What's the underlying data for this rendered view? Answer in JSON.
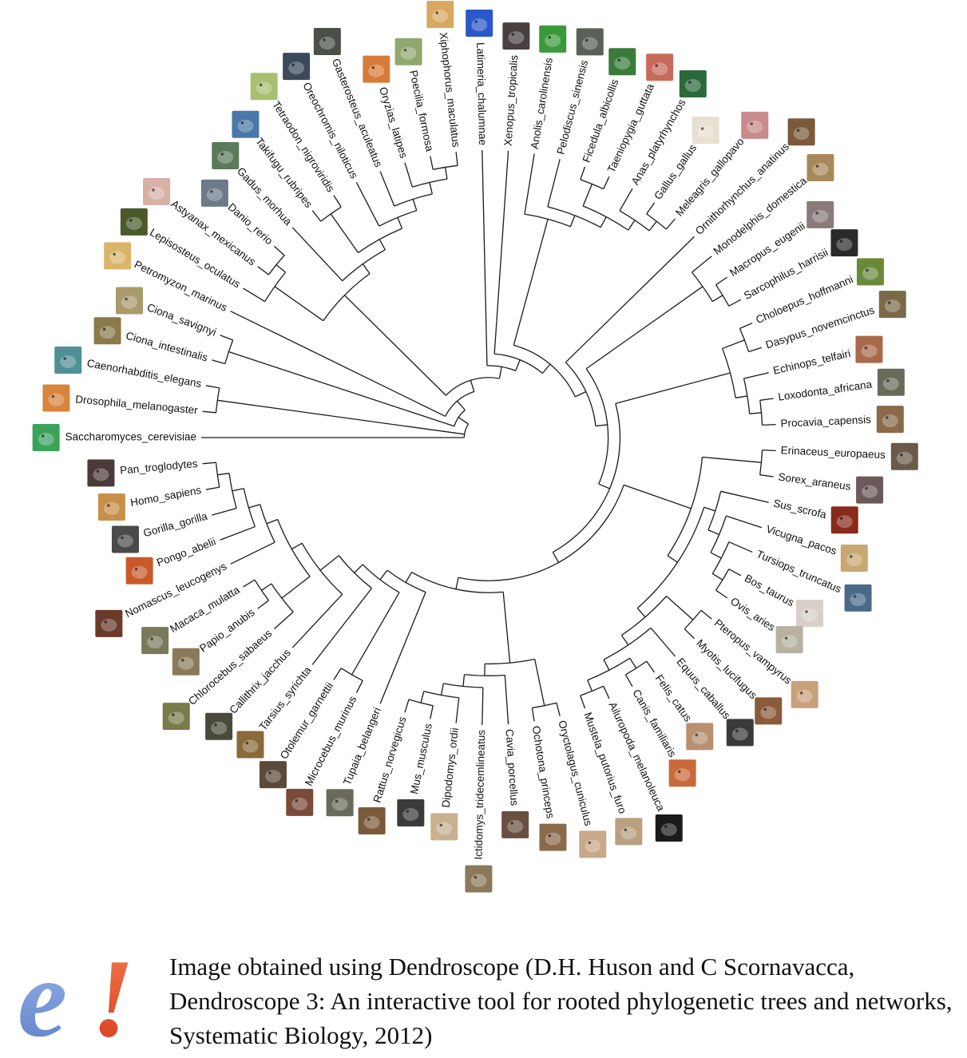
{
  "tree": {
    "taxa": [
      {
        "name": "Saccharomyces_cerevisiae",
        "icon": "yeast-cell-icon",
        "color": "#3aa35a"
      },
      {
        "name": "Drosophila_melanogaster",
        "icon": "fruit-fly-icon",
        "color": "#d8843c"
      },
      {
        "name": "Caenorhabditis_elegans",
        "icon": "roundworm-icon",
        "color": "#4f8f95"
      },
      {
        "name": "Ciona_intestinalis",
        "icon": "sea-squirt-icon",
        "color": "#8a7a4a"
      },
      {
        "name": "Ciona_savignyi",
        "icon": "sea-squirt-icon",
        "color": "#a89a6a"
      },
      {
        "name": "Petromyzon_marinus",
        "icon": "lamprey-icon",
        "color": "#d9b56a"
      },
      {
        "name": "Lepisosteus_oculatus",
        "icon": "gar-icon",
        "color": "#4a5a2a"
      },
      {
        "name": "Astyanax_mexicanus",
        "icon": "cavefish-icon",
        "color": "#d8b0a8"
      },
      {
        "name": "Danio_rerio",
        "icon": "zebrafish-icon",
        "color": "#6c7a8a"
      },
      {
        "name": "Gadus_morhua",
        "icon": "cod-icon",
        "color": "#5a7a5a"
      },
      {
        "name": "Takifugu_rubripes",
        "icon": "pufferfish-icon",
        "color": "#4a78a8"
      },
      {
        "name": "Tetraodon_nigroviridis",
        "icon": "pufferfish-icon",
        "color": "#a8c070"
      },
      {
        "name": "Oreochromis_niloticus",
        "icon": "tilapia-icon",
        "color": "#3a4a5a"
      },
      {
        "name": "Gasterosteus_aculeatus",
        "icon": "stickleback-icon",
        "color": "#4a5048"
      },
      {
        "name": "Oryzias_latipes",
        "icon": "medaka-icon",
        "color": "#d87a3a"
      },
      {
        "name": "Poecilia_formosa",
        "icon": "molly-icon",
        "color": "#90a870"
      },
      {
        "name": "Xiphophorus_maculatus",
        "icon": "platyfish-icon",
        "color": "#d8a860"
      },
      {
        "name": "Latimeria_chalumnae",
        "icon": "coelacanth-icon",
        "color": "#2a58c8"
      },
      {
        "name": "Xenopus_tropicalis",
        "icon": "frog-icon",
        "color": "#4a4040"
      },
      {
        "name": "Anolis_carolinensis",
        "icon": "anole-icon",
        "color": "#3a9a3a"
      },
      {
        "name": "Pelodiscus_sinensis",
        "icon": "turtle-icon",
        "color": "#5a6058"
      },
      {
        "name": "Ficedula_albicollis",
        "icon": "flycatcher-icon",
        "color": "#3a7a3a"
      },
      {
        "name": "Taeniopygia_guttata",
        "icon": "finch-icon",
        "color": "#c86a5a"
      },
      {
        "name": "Anas_platyrhynchos",
        "icon": "duck-icon",
        "color": "#2a6a3a"
      },
      {
        "name": "Gallus_gallus",
        "icon": "chicken-icon",
        "color": "#e8e0d0"
      },
      {
        "name": "Meleagris_gallopavo",
        "icon": "turkey-icon",
        "color": "#c88a8a"
      },
      {
        "name": "Ornithorhynchus_anatinus",
        "icon": "platypus-icon",
        "color": "#7a5a3a"
      },
      {
        "name": "Monodelphis_domestica",
        "icon": "opossum-icon",
        "color": "#a8885a"
      },
      {
        "name": "Macropus_eugenii",
        "icon": "wallaby-icon",
        "color": "#8a7a7a"
      },
      {
        "name": "Sarcophilus_harrisii",
        "icon": "tasmanian-devil-icon",
        "color": "#2a2a2a"
      },
      {
        "name": "Choloepus_hoffmanni",
        "icon": "sloth-icon",
        "color": "#6a8a3a"
      },
      {
        "name": "Dasypus_novemcinctus",
        "icon": "armadillo-icon",
        "color": "#7a6a4a"
      },
      {
        "name": "Echinops_telfairi",
        "icon": "tenrec-icon",
        "color": "#a86a4a"
      },
      {
        "name": "Loxodonta_africana",
        "icon": "elephant-icon",
        "color": "#6a6a5a"
      },
      {
        "name": "Procavia_capensis",
        "icon": "hyrax-icon",
        "color": "#8a6a4a"
      },
      {
        "name": "Erinaceus_europaeus",
        "icon": "hedgehog-icon",
        "color": "#6a5a4a"
      },
      {
        "name": "Sorex_araneus",
        "icon": "shrew-icon",
        "color": "#6a5a5a"
      },
      {
        "name": "Sus_scrofa",
        "icon": "pig-icon",
        "color": "#8a2a1a"
      },
      {
        "name": "Vicugna_pacos",
        "icon": "alpaca-icon",
        "color": "#c8a870"
      },
      {
        "name": "Tursiops_truncatus",
        "icon": "dolphin-icon",
        "color": "#4a6a8a"
      },
      {
        "name": "Bos_taurus",
        "icon": "cow-icon",
        "color": "#d8d0c8"
      },
      {
        "name": "Ovis_aries",
        "icon": "sheep-icon",
        "color": "#b8b0a0"
      },
      {
        "name": "Pteropus_vampyrus",
        "icon": "fruit-bat-icon",
        "color": "#c8a07a"
      },
      {
        "name": "Myotis_lucifugus",
        "icon": "bat-icon",
        "color": "#8a5a3a"
      },
      {
        "name": "Equus_caballus",
        "icon": "horse-icon",
        "color": "#3a3a3a"
      },
      {
        "name": "Felis_catus",
        "icon": "cat-icon",
        "color": "#b89070"
      },
      {
        "name": "Canis_familiaris",
        "icon": "dog-icon",
        "color": "#c86a3a"
      },
      {
        "name": "Ailuropoda_melanoleuca",
        "icon": "panda-icon",
        "color": "#1a1a1a"
      },
      {
        "name": "Mustela_putorius_furo",
        "icon": "ferret-icon",
        "color": "#b8a080"
      },
      {
        "name": "Oryctolagus_cuniculus",
        "icon": "rabbit-icon",
        "color": "#c8a888"
      },
      {
        "name": "Ochotona_princeps",
        "icon": "pika-icon",
        "color": "#8a6a4a"
      },
      {
        "name": "Cavia_porcellus",
        "icon": "guinea-pig-icon",
        "color": "#6a5040"
      },
      {
        "name": "Ictidomys_tridecemlineatus",
        "icon": "ground-squirrel-icon",
        "color": "#8a7a5a"
      },
      {
        "name": "Dipodomys_ordii",
        "icon": "kangaroo-rat-icon",
        "color": "#c8b090"
      },
      {
        "name": "Mus_musculus",
        "icon": "mouse-icon",
        "color": "#3a3a3a"
      },
      {
        "name": "Rattus_norvegicus",
        "icon": "rat-icon",
        "color": "#7a5a3a"
      },
      {
        "name": "Tupaia_belangeri",
        "icon": "tree-shrew-icon",
        "color": "#6a6a5a"
      },
      {
        "name": "Microcebus_murinus",
        "icon": "mouse-lemur-icon",
        "color": "#7a4a3a"
      },
      {
        "name": "Otolemur_garnettii",
        "icon": "galago-icon",
        "color": "#5a4a3a"
      },
      {
        "name": "Tarsius_syrichta",
        "icon": "tarsier-icon",
        "color": "#8a6a3a"
      },
      {
        "name": "Callithrix_jacchus",
        "icon": "marmoset-icon",
        "color": "#4a4a3a"
      },
      {
        "name": "Chlorocebus_sabaeus",
        "icon": "vervet-icon",
        "color": "#7a7a4a"
      },
      {
        "name": "Papio_anubis",
        "icon": "baboon-icon",
        "color": "#8a7a5a"
      },
      {
        "name": "Macaca_mulatta",
        "icon": "macaque-icon",
        "color": "#7a7a5a"
      },
      {
        "name": "Nomascus_leucogenys",
        "icon": "gibbon-icon",
        "color": "#6a3a2a"
      },
      {
        "name": "Pongo_abelii",
        "icon": "orangutan-icon",
        "color": "#c85a2a"
      },
      {
        "name": "Gorilla_gorilla",
        "icon": "gorilla-icon",
        "color": "#4a4a4a"
      },
      {
        "name": "Homo_sapiens",
        "icon": "human-icon",
        "color": "#c8904a"
      },
      {
        "name": "Pan_troglodytes",
        "icon": "chimpanzee-icon",
        "color": "#4a3a3a"
      }
    ],
    "topology": "(Saccharomyces_cerevisiae,(Drosophila_melanogaster,Caenorhabditis_elegans),((Ciona_intestinalis,Ciona_savignyi),(Petromyzon_marinus,(((Lepisosteus_oculatus,(Astyanax_mexicanus,Danio_rerio)),(Gadus_morhua,((Takifugu_rubripes,Tetraodon_nigroviridis),(Oreochromis_niloticus,(Gasterosteus_aculeatus,(Oryzias_latipes,(Poecilia_formosa,Xiphophorus_maculatus))))))),(Latimeria_chalumnae,(Xenopus_tropicalis,((Anolis_carolinensis,(Pelodiscus_sinensis,((Ficedula_albicollis,Taeniopygia_guttata),(Anas_platyrhynchos,(Gallus_gallus,Meleagris_gallopavo))))),(Ornithorhynchus_anatinus,((Monodelphis_domestica,(Macropus_eugenii,Sarcophilus_harrisii)),(((Choloepus_hoffmanni,Dasypus_novemcinctus),(Echinops_telfairi,(Loxodonta_africana,Procavia_capensis))),(((Erinaceus_europaeus,Sorex_araneus),((Sus_scrofa,(Vicugna_pacos,(Tursiops_truncatus,(Bos_taurus,Ovis_aries)))),((Pteropus_vampyrus,Myotis_lucifugus),(Equus_caballus,((Felis_catus,Canis_familiaris),(Ailuropoda_melanoleuca,Mustela_putorius_furo)))))),(((Oryctolagus_cuniculus,Ochotona_princeps),(Cavia_porcellus,(Ictidomys_tridecemlineatus,(Dipodomys_ordii,(Mus_musculus,Rattus_norvegicus))))),(Tupaia_belangeri,((Microcebus_murinus,Otolemur_garnettii),(Tarsius_syrichta,((Callithrix_jacchus,((Chlorocebus_sabaeus,(Papio_anubis,Macaca_mulatta)),(Nomascus_leucogenys,(Pongo_abelii,(Gorilla_gorilla,(Homo_sapiens,Pan_troglodytes))))))))))))))))))))))"
  },
  "footer": {
    "credit": "Image obtained using Dendroscope (D.H. Huson and C Scornavacca, Dendroscope 3: An interactive tool for rooted phylogenetic trees and networks, Systematic Biology, 2012)",
    "logo_text": "e!",
    "logo_colors": {
      "e": "#5b7fc8",
      "bang": "#d83a1a"
    }
  }
}
